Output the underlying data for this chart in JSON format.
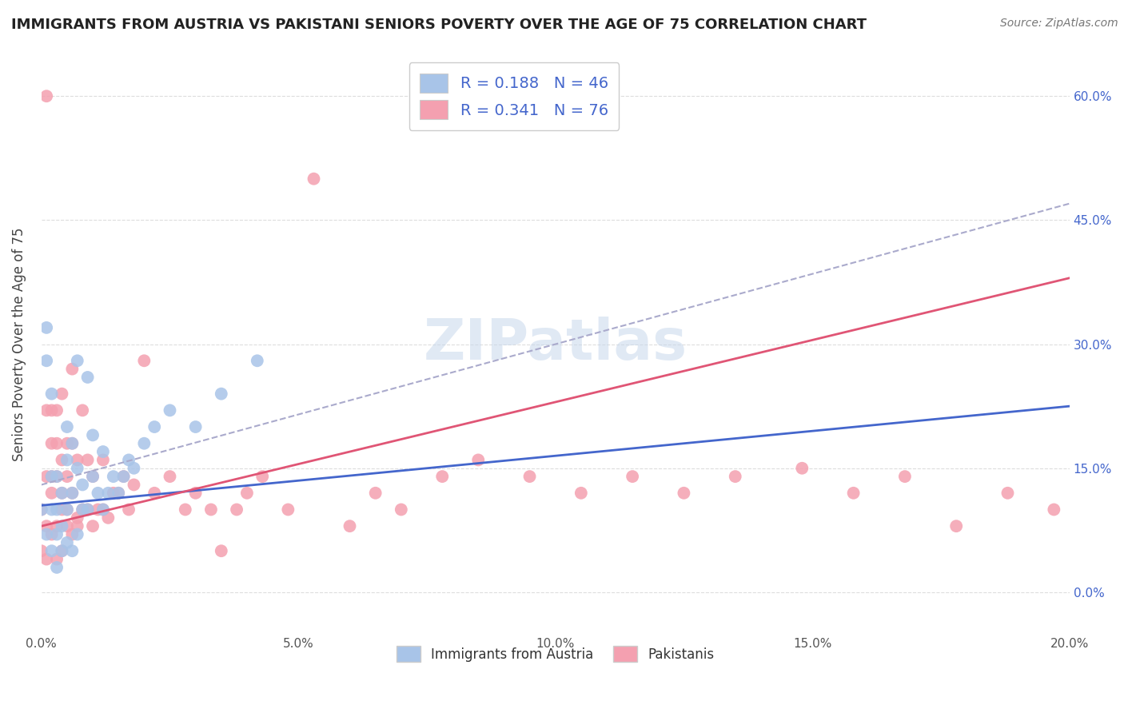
{
  "title": "IMMIGRANTS FROM AUSTRIA VS PAKISTANI SENIORS POVERTY OVER THE AGE OF 75 CORRELATION CHART",
  "source": "Source: ZipAtlas.com",
  "ylabel": "Seniors Poverty Over the Age of 75",
  "xlim": [
    0.0,
    0.2
  ],
  "ylim": [
    -0.05,
    0.65
  ],
  "xtick_vals": [
    0.0,
    0.05,
    0.1,
    0.15,
    0.2
  ],
  "xtick_labels": [
    "0.0%",
    "5.0%",
    "10.0%",
    "15.0%",
    "20.0%"
  ],
  "ytick_labels_right": [
    "0.0%",
    "15.0%",
    "30.0%",
    "45.0%",
    "60.0%"
  ],
  "ytick_vals_right": [
    0.0,
    0.15,
    0.3,
    0.45,
    0.6
  ],
  "watermark": "ZIPatlas",
  "legend_austria_R": "0.188",
  "legend_austria_N": "46",
  "legend_pakistan_R": "0.341",
  "legend_pakistan_N": "76",
  "austria_color": "#a8c4e8",
  "pakistan_color": "#f4a0b0",
  "austria_line_color": "#4466cc",
  "pakistan_line_color": "#e05575",
  "dashed_line_color": "#aaaacc",
  "grid_color": "#dddddd",
  "title_color": "#222222",
  "label_color": "#4466cc",
  "austria_scatter_x": [
    0.0,
    0.001,
    0.001,
    0.001,
    0.002,
    0.002,
    0.002,
    0.002,
    0.003,
    0.003,
    0.003,
    0.003,
    0.004,
    0.004,
    0.004,
    0.005,
    0.005,
    0.005,
    0.005,
    0.006,
    0.006,
    0.006,
    0.007,
    0.007,
    0.007,
    0.008,
    0.008,
    0.009,
    0.009,
    0.01,
    0.01,
    0.011,
    0.012,
    0.012,
    0.013,
    0.014,
    0.015,
    0.016,
    0.017,
    0.018,
    0.02,
    0.022,
    0.025,
    0.03,
    0.035,
    0.042
  ],
  "austria_scatter_y": [
    0.1,
    0.32,
    0.28,
    0.07,
    0.14,
    0.1,
    0.24,
    0.05,
    0.14,
    0.07,
    0.1,
    0.03,
    0.08,
    0.12,
    0.05,
    0.1,
    0.2,
    0.06,
    0.16,
    0.12,
    0.05,
    0.18,
    0.15,
    0.28,
    0.07,
    0.1,
    0.13,
    0.26,
    0.1,
    0.14,
    0.19,
    0.12,
    0.1,
    0.17,
    0.12,
    0.14,
    0.12,
    0.14,
    0.16,
    0.15,
    0.18,
    0.2,
    0.22,
    0.2,
    0.24,
    0.28
  ],
  "pakistan_scatter_x": [
    0.0,
    0.0,
    0.001,
    0.001,
    0.001,
    0.001,
    0.001,
    0.002,
    0.002,
    0.002,
    0.002,
    0.002,
    0.003,
    0.003,
    0.003,
    0.003,
    0.003,
    0.004,
    0.004,
    0.004,
    0.004,
    0.004,
    0.005,
    0.005,
    0.005,
    0.005,
    0.006,
    0.006,
    0.006,
    0.006,
    0.007,
    0.007,
    0.007,
    0.008,
    0.008,
    0.009,
    0.009,
    0.01,
    0.01,
    0.011,
    0.012,
    0.012,
    0.013,
    0.014,
    0.015,
    0.016,
    0.017,
    0.018,
    0.02,
    0.022,
    0.025,
    0.028,
    0.03,
    0.033,
    0.035,
    0.038,
    0.04,
    0.043,
    0.048,
    0.053,
    0.06,
    0.065,
    0.07,
    0.078,
    0.085,
    0.095,
    0.105,
    0.115,
    0.125,
    0.135,
    0.148,
    0.158,
    0.168,
    0.178,
    0.188,
    0.197
  ],
  "pakistan_scatter_y": [
    0.1,
    0.05,
    0.6,
    0.22,
    0.14,
    0.08,
    0.04,
    0.18,
    0.12,
    0.22,
    0.07,
    0.14,
    0.22,
    0.14,
    0.08,
    0.04,
    0.18,
    0.1,
    0.16,
    0.05,
    0.24,
    0.12,
    0.1,
    0.18,
    0.08,
    0.14,
    0.07,
    0.12,
    0.18,
    0.27,
    0.09,
    0.16,
    0.08,
    0.1,
    0.22,
    0.1,
    0.16,
    0.08,
    0.14,
    0.1,
    0.1,
    0.16,
    0.09,
    0.12,
    0.12,
    0.14,
    0.1,
    0.13,
    0.28,
    0.12,
    0.14,
    0.1,
    0.12,
    0.1,
    0.05,
    0.1,
    0.12,
    0.14,
    0.1,
    0.5,
    0.08,
    0.12,
    0.1,
    0.14,
    0.16,
    0.14,
    0.12,
    0.14,
    0.12,
    0.14,
    0.15,
    0.12,
    0.14,
    0.08,
    0.12,
    0.1
  ],
  "austria_trendline_x": [
    0.0,
    0.2
  ],
  "austria_trendline_y": [
    0.105,
    0.225
  ],
  "pakistan_trendline_x": [
    0.0,
    0.2
  ],
  "pakistan_trendline_y": [
    0.08,
    0.38
  ]
}
